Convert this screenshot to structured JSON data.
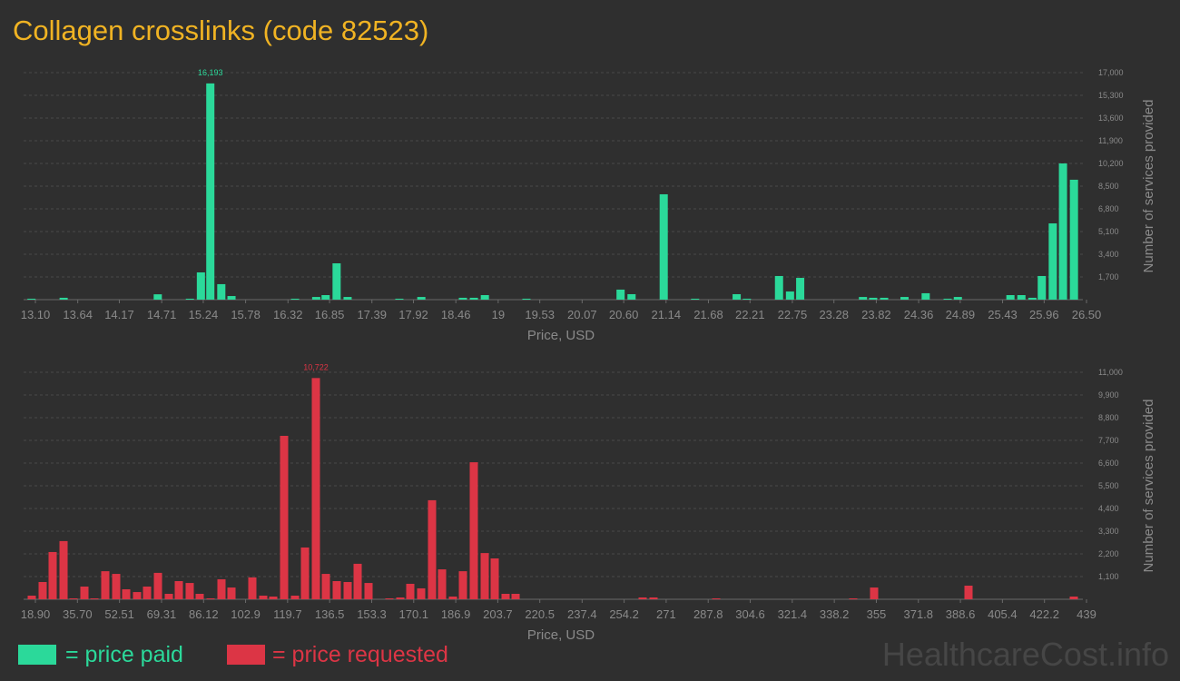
{
  "title": "Collagen crosslinks (code 82523)",
  "watermark": "HealthcareCost.info",
  "chart_data": [
    {
      "type": "bar",
      "x": [
        13.05,
        13.46,
        14.66,
        15.07,
        15.21,
        15.33,
        15.47,
        15.6,
        16.41,
        16.68,
        16.8,
        16.94,
        17.08,
        17.74,
        18.02,
        18.55,
        18.69,
        18.83,
        19.36,
        20.56,
        20.7,
        21.11,
        21.51,
        22.04,
        22.17,
        22.58,
        22.72,
        22.85,
        23.65,
        23.78,
        23.92,
        24.18,
        24.45,
        24.73,
        24.86,
        25.53,
        25.67,
        25.81,
        25.93,
        26.07,
        26.2,
        26.34
      ],
      "series": [
        {
          "name": "= price paid",
          "color": "#2bd99a",
          "values": [
            70,
            140,
            400,
            70,
            2040,
            16193,
            1160,
            270,
            70,
            200,
            340,
            2720,
            200,
            70,
            200,
            140,
            140,
            340,
            70,
            750,
            410,
            7890,
            70,
            410,
            70,
            1770,
            610,
            1630,
            200,
            140,
            140,
            200,
            480,
            70,
            200,
            340,
            340,
            140,
            1770,
            5710,
            10200,
            8980
          ],
          "value_labels": [
            null,
            null,
            null,
            null,
            null,
            "16,193",
            null,
            null,
            null,
            null,
            null,
            null,
            null,
            null,
            null,
            null,
            null,
            null,
            null,
            null,
            null,
            null,
            null,
            null,
            null,
            null,
            null,
            null,
            null,
            null,
            null,
            null,
            null,
            null,
            null,
            null,
            null,
            null,
            null,
            null,
            null,
            null
          ]
        }
      ],
      "xlim": [
        13.1,
        26.5
      ],
      "xticks": [
        {
          "value": 13.1,
          "label": "13.10"
        },
        13.64,
        14.17,
        14.71,
        15.24,
        15.78,
        16.32,
        16.85,
        17.39,
        17.92,
        18.46,
        19,
        19.53,
        20.07,
        {
          "value": 20.6,
          "label": "20.60"
        },
        21.14,
        21.68,
        22.21,
        22.75,
        23.28,
        23.82,
        24.36,
        24.89,
        25.43,
        25.96,
        {
          "value": 26.5,
          "label": "26.50"
        }
      ],
      "ylim": [
        0,
        17000
      ],
      "yticks": [
        {
          "value": 1700,
          "label": "1,700"
        },
        {
          "value": 3400,
          "label": "3,400"
        },
        {
          "value": 5100,
          "label": "5,100"
        },
        {
          "value": 6800,
          "label": "6,800"
        },
        {
          "value": 8500,
          "label": "8,500"
        },
        {
          "value": 10200,
          "label": "10,200"
        },
        {
          "value": 11900,
          "label": "11,900"
        },
        {
          "value": 13600,
          "label": "13,600"
        },
        {
          "value": 15300,
          "label": "15,300"
        },
        {
          "value": 17000,
          "label": "17,000"
        }
      ],
      "grid": true,
      "xlabel": "Price, USD",
      "ylabel": "Number of services provided"
    },
    {
      "type": "bar",
      "x": [
        17.45,
        21.8,
        25.79,
        30.15,
        34.14,
        38.49,
        42.48,
        46.83,
        51.19,
        55.18,
        59.53,
        63.52,
        67.88,
        72.23,
        76.22,
        80.57,
        84.56,
        88.92,
        93.27,
        97.26,
        105.6,
        109.96,
        113.95,
        118.3,
        122.66,
        126.65,
        131.0,
        134.99,
        139.34,
        143.7,
        147.69,
        152.04,
        160.38,
        164.74,
        168.73,
        173.08,
        177.43,
        181.43,
        185.78,
        189.77,
        194.12,
        198.48,
        202.47,
        206.82,
        210.81,
        261.6,
        265.95,
        290.99,
        345.76,
        354.11,
        391.84,
        433.92
      ],
      "series": [
        {
          "name": "= price requested",
          "color": "#dc3545",
          "values": [
            176,
            836,
            2290,
            2820,
            44,
            616,
            44,
            1360,
            1230,
            484,
            350,
            616,
            1280,
            264,
            880,
            790,
            264,
            44,
            970,
            570,
            1060,
            176,
            132,
            7920,
            176,
            2510,
            10722,
            1230,
            880,
            836,
            1720,
            790,
            44,
            88,
            750,
            530,
            4800,
            1450,
            132,
            1360,
            6640,
            2240,
            1980,
            264,
            264,
            88,
            88,
            44,
            44,
            570,
            660,
            132
          ],
          "value_labels": [
            null,
            null,
            null,
            null,
            null,
            null,
            null,
            null,
            null,
            null,
            null,
            null,
            null,
            null,
            null,
            null,
            null,
            null,
            null,
            null,
            null,
            null,
            null,
            null,
            null,
            null,
            "10,722",
            null,
            null,
            null,
            null,
            null,
            null,
            null,
            null,
            null,
            null,
            null,
            null,
            null,
            null,
            null,
            null,
            null,
            null,
            null,
            null,
            null,
            null,
            null,
            null,
            null
          ]
        }
      ],
      "xlim": [
        18.9,
        439
      ],
      "xticks": [
        {
          "value": 18.9,
          "label": "18.90"
        },
        {
          "value": 35.7,
          "label": "35.70"
        },
        52.51,
        69.31,
        86.12,
        102.9,
        119.7,
        136.5,
        153.3,
        170.1,
        186.9,
        203.7,
        220.5,
        237.4,
        254.2,
        271,
        287.8,
        304.6,
        321.4,
        338.2,
        355,
        371.8,
        388.6,
        405.4,
        422.2,
        439
      ],
      "ylim": [
        0,
        11000
      ],
      "yticks": [
        {
          "value": 1100,
          "label": "1,100"
        },
        {
          "value": 2200,
          "label": "2,200"
        },
        {
          "value": 3300,
          "label": "3,300"
        },
        {
          "value": 4400,
          "label": "4,400"
        },
        {
          "value": 5500,
          "label": "5,500"
        },
        {
          "value": 6600,
          "label": "6,600"
        },
        {
          "value": 7700,
          "label": "7,700"
        },
        {
          "value": 8800,
          "label": "8,800"
        },
        {
          "value": 9900,
          "label": "9,900"
        },
        {
          "value": 11000,
          "label": "11,000"
        }
      ],
      "grid": true,
      "xlabel": "Price, USD",
      "ylabel": "Number of services provided"
    }
  ]
}
